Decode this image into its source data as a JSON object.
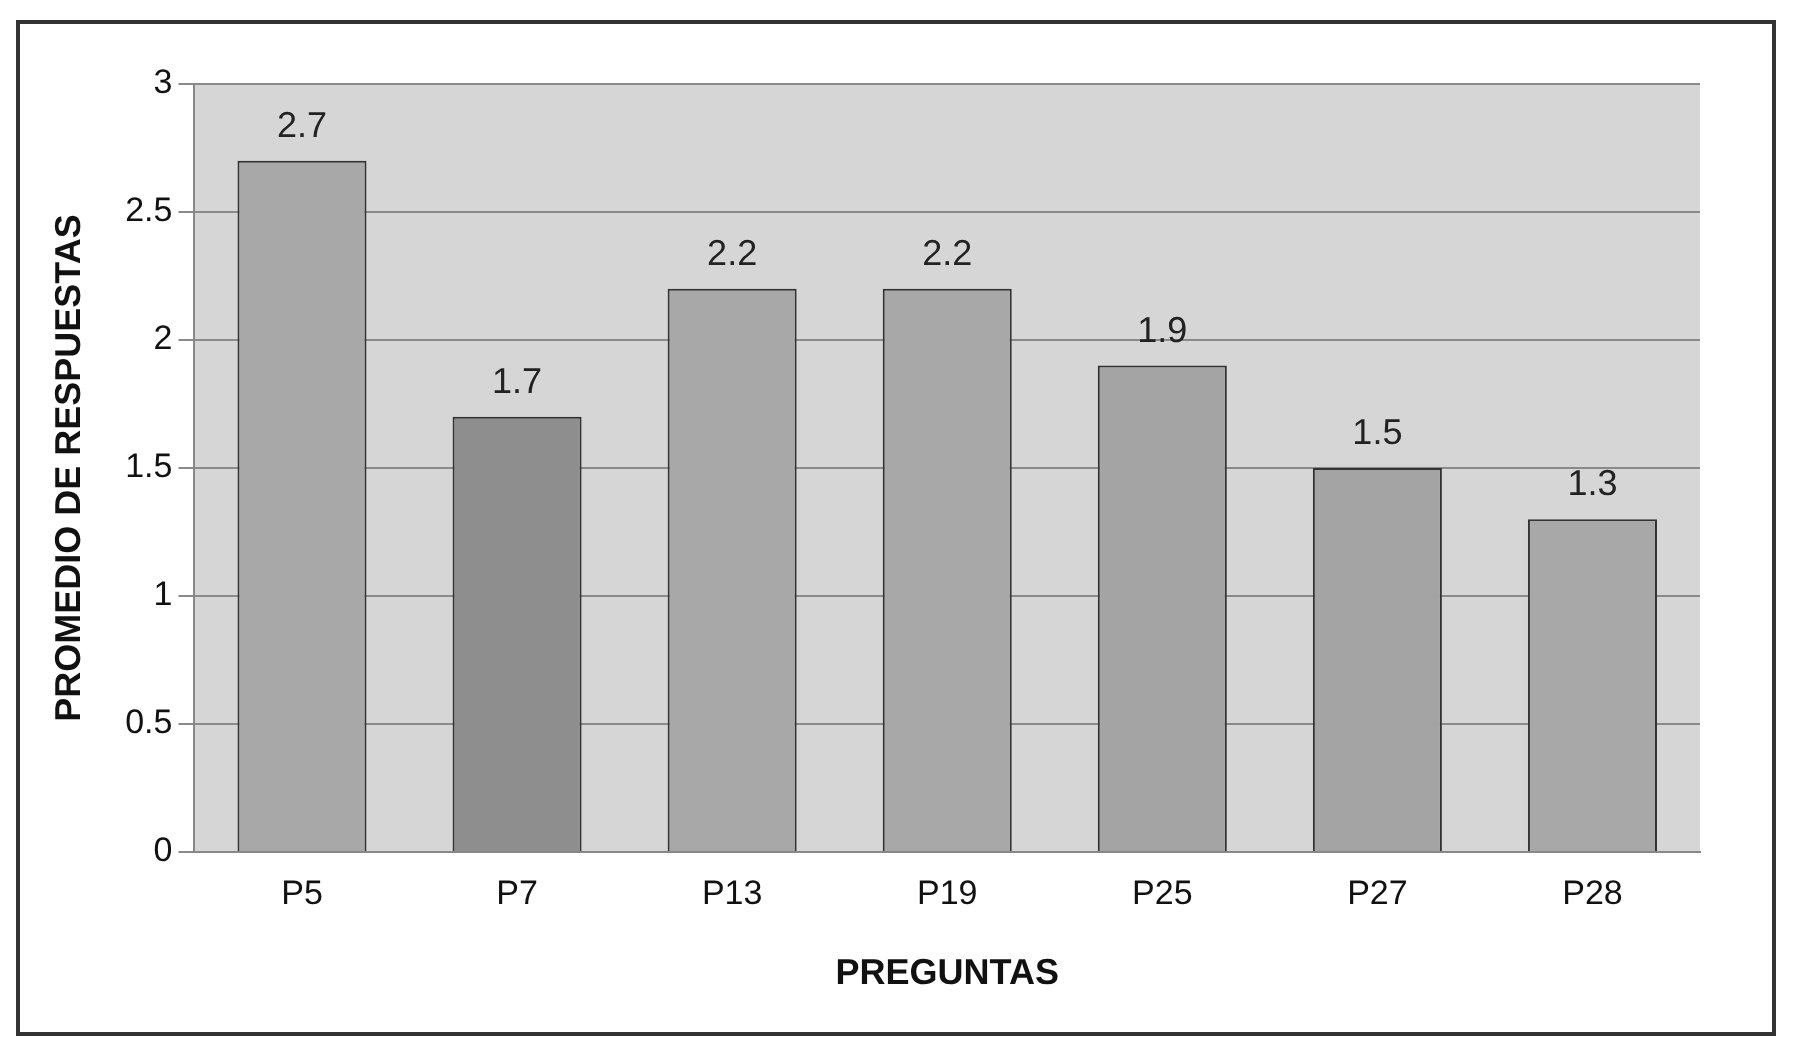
{
  "chart_data": {
    "type": "bar",
    "xlabel": "PREGUNTAS",
    "ylabel": "PROMEDIO DE RESPUESTAS",
    "categories": [
      "P5",
      "P7",
      "P13",
      "P19",
      "P25",
      "P27",
      "P28"
    ],
    "values": [
      2.7,
      1.7,
      2.2,
      2.2,
      1.9,
      1.5,
      1.3
    ],
    "colors": [
      "#a8a8a8",
      "#8e8e8e",
      "#a8a8a8",
      "#a8a8a8",
      "#a4a4a4",
      "#a4a4a4",
      "#a8a8a8"
    ],
    "ylim": [
      0,
      3
    ],
    "yticks": [
      0,
      0.5,
      1,
      1.5,
      2,
      2.5,
      3
    ],
    "grid": "y",
    "data_labels": true,
    "legend": false
  }
}
